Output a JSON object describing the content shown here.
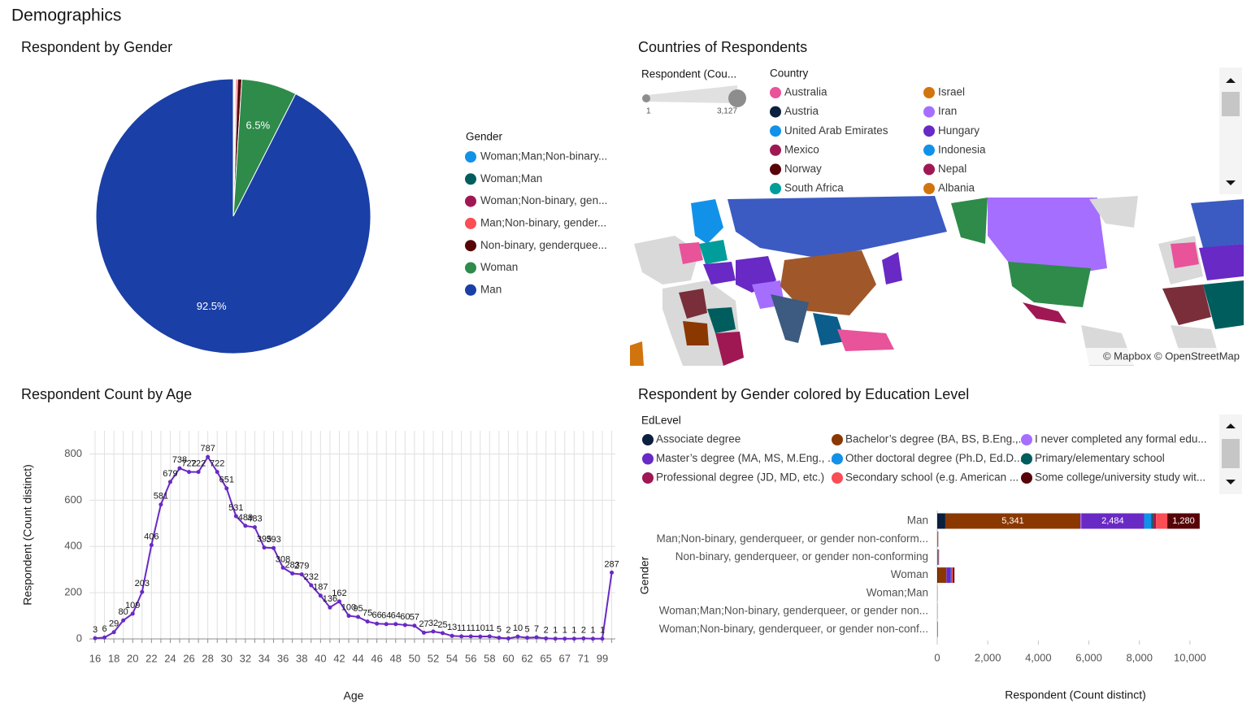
{
  "title": "Demographics",
  "chart_data": [
    {
      "type": "pie",
      "title": "Respondent by Gender",
      "legend_title": "Gender",
      "categories": [
        "Woman;Man;Non-binary...",
        "Woman;Man",
        "Woman;Non-binary, gen...",
        "Man;Non-binary, gender...",
        "Non-binary, genderquee...",
        "Woman",
        "Man"
      ],
      "values": [
        0.1,
        0.1,
        0.1,
        0.2,
        0.5,
        6.5,
        92.5
      ],
      "value_labels": [
        null,
        null,
        null,
        null,
        null,
        "6.5%",
        "92.5%"
      ],
      "colors": [
        "#1192e8",
        "#005d5d",
        "#9f1853",
        "#fa4d56",
        "#570408",
        "#2e8b4a",
        "#1a3fa6"
      ]
    },
    {
      "type": "map",
      "title": "Countries of Respondents",
      "size_legend": {
        "title": "Respondent (Cou...",
        "ticks": [
          1,
          {
            "value": 3127,
            "label": "3,127"
          }
        ]
      },
      "legend_title": "Country",
      "categories": [
        "Australia",
        "Austria",
        "United Arab Emirates",
        "Mexico",
        "Norway",
        "South Africa",
        "Israel",
        "Iran",
        "Hungary",
        "Indonesia",
        "Nepal",
        "Albania"
      ],
      "colors": [
        "#e8539a",
        "#0b1f3f",
        "#1192e8",
        "#9f1853",
        "#570408",
        "#009d9a",
        "#d2740e",
        "#a56eff",
        "#6929c4",
        "#1192e8",
        "#9f1853",
        "#d2740e"
      ],
      "attribution": "© Mapbox © OpenStreetMap"
    },
    {
      "type": "line",
      "title": "Respondent Count by Age",
      "xlabel": "Age",
      "ylabel": "Respondent (Count distinct)",
      "categories": [
        "16",
        null,
        "18",
        null,
        "20",
        null,
        "22",
        null,
        "24",
        null,
        "26",
        null,
        "28",
        null,
        "30",
        null,
        "32",
        null,
        "34",
        null,
        "36",
        null,
        "38",
        null,
        "40",
        null,
        "42",
        null,
        "44",
        null,
        "46",
        null,
        "48",
        null,
        "50",
        null,
        "52",
        null,
        "54",
        null,
        "56",
        null,
        "58",
        null,
        "60",
        null,
        "62",
        null,
        "65",
        null,
        "67",
        null,
        "71",
        null,
        "99",
        null
      ],
      "values": [
        3,
        6,
        29,
        80,
        109,
        203,
        406,
        581,
        679,
        738,
        722,
        722,
        787,
        722,
        651,
        531,
        489,
        483,
        395,
        393,
        308,
        283,
        279,
        232,
        187,
        136,
        162,
        100,
        95,
        75,
        66,
        64,
        64,
        60,
        57,
        27,
        32,
        25,
        13,
        11,
        11,
        10,
        11,
        5,
        2,
        10,
        5,
        7,
        2,
        1,
        1,
        1,
        2,
        1,
        1,
        287
      ],
      "color": "#6929c4",
      "ylim": [
        0,
        900
      ],
      "yticks": [
        0,
        200,
        400,
        600,
        800
      ],
      "grid": true
    },
    {
      "type": "bar",
      "orientation": "horizontal",
      "stacked": true,
      "title": "Respondent by Gender colored by Education Level",
      "legend_title": "EdLevel",
      "ylabel": "Gender",
      "xlabel": "Respondent (Count distinct)",
      "categories": [
        "Man",
        "Man;Non-binary, genderqueer, or gender non-conform...",
        "Non-binary, genderqueer, or gender non-conforming",
        "Woman",
        "Woman;Man",
        "Woman;Man;Non-binary, genderqueer, or gender non...",
        "Woman;Non-binary, genderqueer, or gender non-conf..."
      ],
      "series": [
        {
          "name": "Associate degree",
          "color": "#0b1f3f",
          "values": [
            320,
            2,
            3,
            30,
            0,
            0,
            1
          ]
        },
        {
          "name": "Bachelor’s degree (BA, BS, B.Eng.,...",
          "color": "#8a3800",
          "values": [
            5341,
            15,
            25,
            330,
            4,
            4,
            9
          ],
          "value_labels": [
            "5,341",
            null,
            null,
            null,
            null,
            null,
            null
          ]
        },
        {
          "name": "I never completed any formal edu...",
          "color": "#a56eff",
          "values": [
            40,
            0,
            1,
            5,
            0,
            0,
            0
          ]
        },
        {
          "name": "Master’s degree (MA, MS, M.Eng., ...",
          "color": "#6929c4",
          "values": [
            2484,
            8,
            12,
            170,
            2,
            2,
            5
          ],
          "value_labels": [
            "2,484",
            null,
            null,
            null,
            null,
            null,
            null
          ]
        },
        {
          "name": "Other doctoral degree (Ph.D, Ed.D....",
          "color": "#1192e8",
          "values": [
            290,
            2,
            4,
            25,
            1,
            1,
            2
          ]
        },
        {
          "name": "Primary/elementary school",
          "color": "#005d5d",
          "values": [
            60,
            1,
            2,
            5,
            0,
            0,
            1
          ]
        },
        {
          "name": "Professional degree (JD, MD, etc.)",
          "color": "#9f1853",
          "values": [
            120,
            1,
            2,
            15,
            0,
            1,
            1
          ]
        },
        {
          "name": "Secondary school (e.g. American ...",
          "color": "#fa4d56",
          "values": [
            450,
            4,
            8,
            40,
            1,
            1,
            3
          ]
        },
        {
          "name": "Some college/university study wit...",
          "color": "#570408",
          "values": [
            1280,
            7,
            13,
            60,
            2,
            1,
            3
          ],
          "value_labels": [
            "1,280",
            null,
            null,
            null,
            null,
            null,
            null
          ]
        }
      ],
      "xlim": [
        0,
        11000
      ],
      "xticks": [
        0,
        {
          "value": 2000,
          "label": "2,000"
        },
        {
          "value": 4000,
          "label": "4,000"
        },
        {
          "value": 6000,
          "label": "6,000"
        },
        {
          "value": 8000,
          "label": "8,000"
        },
        {
          "value": 10000,
          "label": "10,000"
        }
      ]
    }
  ]
}
